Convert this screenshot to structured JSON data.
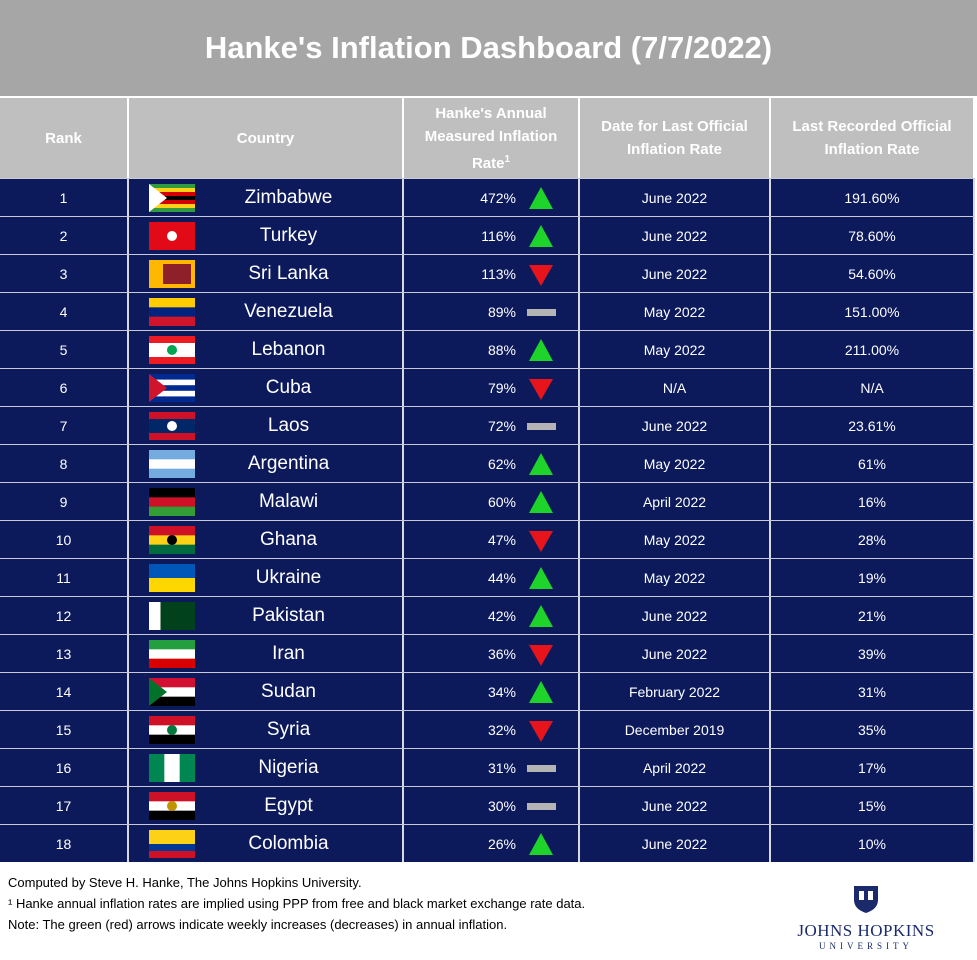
{
  "header": {
    "title": "Hanke's Inflation Dashboard (7/7/2022)"
  },
  "table": {
    "columns": [
      "Rank",
      "Country",
      "Hanke's Annual Measured Inflation Rate",
      "Date for Last Official Inflation Rate",
      "Last Recorded Official Inflation Rate"
    ],
    "column_note_mark": "1",
    "trend_colors": {
      "up": "#1ed42a",
      "down": "#e8141c",
      "flat": "#b4b4b4"
    },
    "rows": [
      {
        "rank": "1",
        "country": "Zimbabwe",
        "hanke": "472%",
        "trend": "up",
        "date": "June 2022",
        "official": "191.60%"
      },
      {
        "rank": "2",
        "country": "Turkey",
        "hanke": "116%",
        "trend": "up",
        "date": "June 2022",
        "official": "78.60%"
      },
      {
        "rank": "3",
        "country": "Sri Lanka",
        "hanke": "113%",
        "trend": "down",
        "date": "June 2022",
        "official": "54.60%"
      },
      {
        "rank": "4",
        "country": "Venezuela",
        "hanke": "89%",
        "trend": "flat",
        "date": "May 2022",
        "official": "151.00%"
      },
      {
        "rank": "5",
        "country": "Lebanon",
        "hanke": "88%",
        "trend": "up",
        "date": "May 2022",
        "official": "211.00%"
      },
      {
        "rank": "6",
        "country": "Cuba",
        "hanke": "79%",
        "trend": "down",
        "date": "N/A",
        "official": "N/A"
      },
      {
        "rank": "7",
        "country": "Laos",
        "hanke": "72%",
        "trend": "flat",
        "date": "June 2022",
        "official": "23.61%"
      },
      {
        "rank": "8",
        "country": "Argentina",
        "hanke": "62%",
        "trend": "up",
        "date": "May 2022",
        "official": "61%"
      },
      {
        "rank": "9",
        "country": "Malawi",
        "hanke": "60%",
        "trend": "up",
        "date": "April 2022",
        "official": "16%"
      },
      {
        "rank": "10",
        "country": "Ghana",
        "hanke": "47%",
        "trend": "down",
        "date": "May 2022",
        "official": "28%"
      },
      {
        "rank": "11",
        "country": "Ukraine",
        "hanke": "44%",
        "trend": "up",
        "date": "May 2022",
        "official": "19%"
      },
      {
        "rank": "12",
        "country": "Pakistan",
        "hanke": "42%",
        "trend": "up",
        "date": "June 2022",
        "official": "21%"
      },
      {
        "rank": "13",
        "country": "Iran",
        "hanke": "36%",
        "trend": "down",
        "date": "June 2022",
        "official": "39%"
      },
      {
        "rank": "14",
        "country": "Sudan",
        "hanke": "34%",
        "trend": "up",
        "date": "February 2022",
        "official": "31%"
      },
      {
        "rank": "15",
        "country": "Syria",
        "hanke": "32%",
        "trend": "down",
        "date": "December 2019",
        "official": "35%"
      },
      {
        "rank": "16",
        "country": "Nigeria",
        "hanke": "31%",
        "trend": "flat",
        "date": "April 2022",
        "official": "17%"
      },
      {
        "rank": "17",
        "country": "Egypt",
        "hanke": "30%",
        "trend": "flat",
        "date": "June 2022",
        "official": "15%"
      },
      {
        "rank": "18",
        "country": "Colombia",
        "hanke": "26%",
        "trend": "up",
        "date": "June 2022",
        "official": "10%"
      }
    ]
  },
  "footer": {
    "notes": [
      "Computed by Steve H. Hanke, The Johns Hopkins University.",
      "¹ Hanke annual inflation rates are implied using PPP from free and black market exchange rate data.",
      "Note: The green (red) arrows indicate weekly increases (decreases) in annual inflation."
    ],
    "logo": {
      "name": "JOHNS HOPKINS",
      "sub": "UNIVERSITY"
    }
  }
}
